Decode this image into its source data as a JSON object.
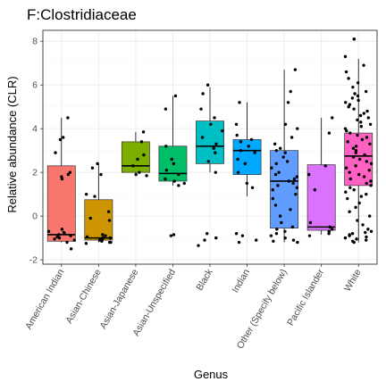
{
  "chart_data": {
    "type": "box",
    "title": "F:Clostridiaceae",
    "xlabel": "Genus",
    "ylabel": "Relative abundance (CLR)",
    "ylim": [
      -2.2,
      8.5
    ],
    "yticks": [
      -2,
      0,
      2,
      4,
      6,
      8
    ],
    "grid": true,
    "legend": "none",
    "categories": [
      {
        "name": "American Indian",
        "color": "#F8766D",
        "stats": {
          "min": -1.2,
          "q1": -1.15,
          "median": -0.85,
          "q3": 2.3,
          "max": 4.5
        },
        "points": [
          4.5,
          3.6,
          3.5,
          2.9,
          2.0,
          1.9,
          1.8,
          1.7,
          -0.6,
          -0.7,
          -0.75,
          -0.8,
          -0.85,
          -0.9,
          -0.95,
          -1.0,
          -1.05,
          -1.1,
          -1.2,
          -1.5
        ]
      },
      {
        "name": "Asian-Chinese",
        "color": "#CD9600",
        "stats": {
          "min": -1.2,
          "q1": -1.1,
          "median": -1.0,
          "q3": 0.75,
          "max": 2.4
        },
        "points": [
          2.4,
          2.2,
          1.9,
          1.0,
          0.9,
          0.2,
          -0.1,
          -0.2,
          -0.85,
          -0.9,
          -0.95,
          -1.0,
          -1.0,
          -1.05,
          -1.1,
          -1.1,
          -1.15,
          -1.2,
          -1.2,
          -1.25
        ]
      },
      {
        "name": "Asian-Japanese",
        "color": "#7CAE00",
        "stats": {
          "min": 1.85,
          "q1": 2.0,
          "median": 2.3,
          "q3": 3.4,
          "max": 3.85
        },
        "points": [
          3.85,
          3.4,
          2.8,
          2.6,
          2.3,
          2.0,
          1.9,
          1.85
        ]
      },
      {
        "name": "Asian-Unspecified",
        "color": "#00BE67",
        "stats": {
          "min": 1.4,
          "q1": 1.6,
          "median": 1.95,
          "q3": 3.2,
          "max": 5.5
        },
        "points": [
          5.5,
          4.9,
          3.2,
          2.6,
          2.4,
          2.1,
          1.9,
          1.7,
          1.6,
          1.5,
          1.4,
          -0.85,
          -0.9
        ]
      },
      {
        "name": "Black",
        "color": "#00BFC4",
        "stats": {
          "min": 2.0,
          "q1": 2.4,
          "median": 3.2,
          "q3": 4.35,
          "max": 5.9
        },
        "points": [
          6.0,
          5.6,
          4.9,
          4.5,
          4.2,
          3.9,
          3.6,
          3.3,
          3.1,
          2.9,
          2.5,
          2.0,
          -0.8,
          -1.0,
          -1.1,
          -1.35
        ]
      },
      {
        "name": "Indian",
        "color": "#00A9FF",
        "stats": {
          "min": 0.9,
          "q1": 1.9,
          "median": 3.0,
          "q3": 3.5,
          "max": 5.2
        },
        "points": [
          5.2,
          4.2,
          3.7,
          3.5,
          3.4,
          3.2,
          3.0,
          2.9,
          2.6,
          2.4,
          2.0,
          1.5,
          1.3,
          -0.8,
          -0.9,
          -1.1,
          -1.2
        ]
      },
      {
        "name": "Other (Specify below)",
        "color": "#619CFF",
        "stats": {
          "min": -1.2,
          "q1": -0.55,
          "median": 1.6,
          "q3": 3.0,
          "max": 6.7
        },
        "points": [
          6.7,
          5.7,
          5.2,
          4.2,
          4.0,
          3.6,
          3.3,
          3.1,
          3.0,
          2.9,
          2.7,
          2.5,
          2.4,
          2.2,
          2.0,
          1.9,
          1.8,
          1.7,
          1.6,
          1.5,
          1.4,
          1.3,
          1.2,
          1.0,
          0.8,
          0.5,
          0.3,
          0.0,
          -0.3,
          -0.5,
          -0.6,
          -0.7,
          -0.8,
          -0.9,
          -1.0,
          -1.1,
          -1.15,
          -1.2
        ]
      },
      {
        "name": "Pacific Islander",
        "color": "#DB72FB",
        "stats": {
          "min": -0.85,
          "q1": -0.65,
          "median": -0.5,
          "q3": 2.35,
          "max": 4.5
        },
        "points": [
          4.5,
          3.8,
          2.3,
          1.9,
          1.2,
          -0.3,
          -0.5,
          -0.6,
          -0.7,
          -0.8,
          -0.9
        ]
      },
      {
        "name": "White",
        "color": "#FF61C3",
        "stats": {
          "min": -1.2,
          "q1": 1.4,
          "median": 2.75,
          "q3": 3.8,
          "max": 7.2
        },
        "points": [
          8.1,
          8.1,
          7.3,
          6.9,
          6.6,
          6.3,
          6.1,
          5.9,
          5.7,
          5.6,
          5.5,
          5.4,
          5.3,
          5.2,
          5.1,
          5.0,
          4.9,
          4.8,
          4.7,
          4.6,
          4.5,
          4.4,
          4.3,
          4.2,
          4.1,
          4.0,
          3.9,
          3.8,
          3.7,
          3.6,
          3.5,
          3.4,
          3.3,
          3.2,
          3.1,
          3.0,
          2.9,
          2.8,
          2.7,
          2.6,
          2.5,
          2.4,
          2.3,
          2.2,
          2.1,
          2.0,
          1.9,
          1.8,
          1.7,
          1.6,
          1.5,
          1.4,
          1.3,
          1.2,
          1.1,
          1.0,
          0.9,
          0.8,
          0.6,
          0.4,
          0.2,
          0.0,
          -0.2,
          -0.4,
          -0.6,
          -0.7,
          -0.75,
          -0.8,
          -0.85,
          -0.9,
          -0.95,
          -1.0,
          -1.05,
          -1.1,
          -1.15,
          -1.2
        ]
      }
    ]
  }
}
